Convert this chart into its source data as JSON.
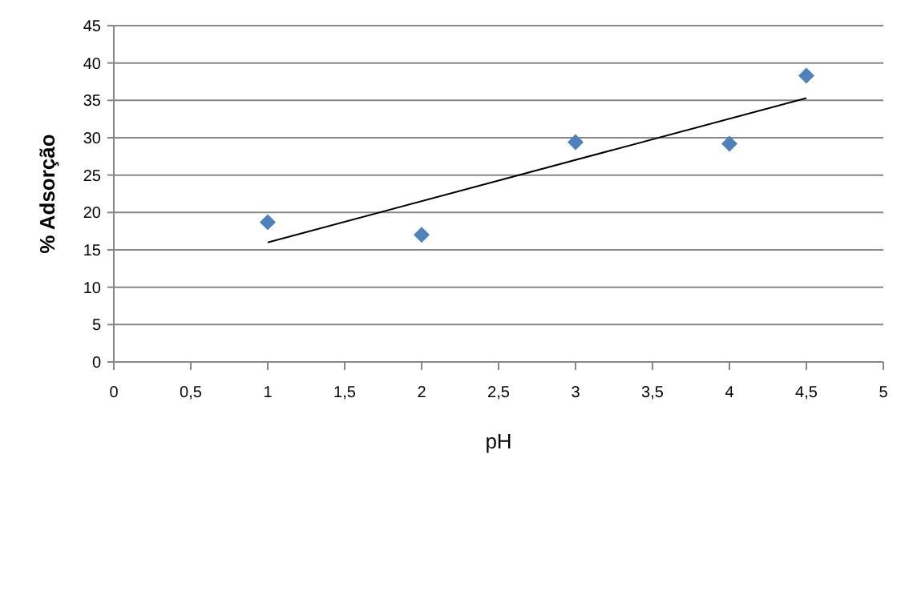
{
  "chart_data": {
    "type": "scatter",
    "xlabel": "pH",
    "ylabel": "% Adsorção",
    "x": [
      1,
      2,
      3,
      4,
      4.5
    ],
    "series": [
      {
        "type": "scatter",
        "color": "#4f81bd",
        "values": [
          18.7,
          17.0,
          29.4,
          29.2,
          38.3
        ],
        "marker": "diamond"
      },
      {
        "type": "line",
        "color": "#000000",
        "x": [
          1,
          4.5
        ],
        "values": [
          16.0,
          35.3
        ],
        "marker": "none"
      }
    ],
    "xlim": [
      0,
      5
    ],
    "xticks": [
      0,
      {
        "value": 0.5,
        "label": "0,5"
      },
      1,
      {
        "value": 1.5,
        "label": "1,5"
      },
      2,
      {
        "value": 2.5,
        "label": "2,5"
      },
      3,
      {
        "value": 3.5,
        "label": "3,5"
      },
      4,
      {
        "value": 4.5,
        "label": "4,5"
      },
      5
    ],
    "ylim": [
      0,
      45
    ],
    "yticks": [
      0,
      5,
      10,
      15,
      20,
      25,
      30,
      35,
      40,
      45
    ],
    "grid": "y"
  }
}
